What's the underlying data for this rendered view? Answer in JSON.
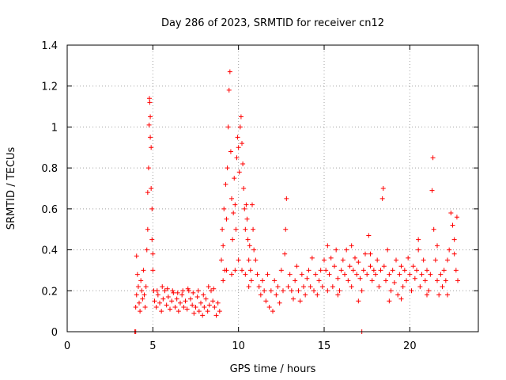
{
  "chart_data": {
    "type": "scatter",
    "title": "Day 286 of 2023, SRMTID for receiver cn12",
    "xlabel": "GPS time / hours",
    "ylabel": "SRMTID / TECUs",
    "xlim": [
      0,
      24
    ],
    "ylim": [
      0,
      1.4
    ],
    "xticks": [
      0,
      5,
      10,
      15,
      20
    ],
    "xtick_labels": [
      "0",
      "5",
      "10",
      "15",
      "20"
    ],
    "yticks": [
      0,
      0.2,
      0.4,
      0.6,
      0.8,
      1.0,
      1.2,
      1.4
    ],
    "ytick_labels": [
      "0",
      "0.2",
      "0.4",
      "0.6",
      "0.8",
      "1",
      "1.2",
      "1.4"
    ],
    "grid": true,
    "marker": "+",
    "color": "#ff0000",
    "series": [
      {
        "name": "cn12",
        "points": [
          [
            3.95,
            0.0
          ],
          [
            4.0,
            0.0
          ],
          [
            17.2,
            0.0
          ],
          [
            4.0,
            0.12
          ],
          [
            4.05,
            0.18
          ],
          [
            4.05,
            0.37
          ],
          [
            4.1,
            0.28
          ],
          [
            4.15,
            0.22
          ],
          [
            4.2,
            0.14
          ],
          [
            4.25,
            0.1
          ],
          [
            4.3,
            0.25
          ],
          [
            4.35,
            0.2
          ],
          [
            4.4,
            0.16
          ],
          [
            4.45,
            0.3
          ],
          [
            4.5,
            0.18
          ],
          [
            4.55,
            0.12
          ],
          [
            4.6,
            0.22
          ],
          [
            4.65,
            0.4
          ],
          [
            4.7,
            0.5
          ],
          [
            4.7,
            0.68
          ],
          [
            4.75,
            0.8
          ],
          [
            4.78,
            1.01
          ],
          [
            4.8,
            1.14
          ],
          [
            4.82,
            1.12
          ],
          [
            4.85,
            1.05
          ],
          [
            4.85,
            0.95
          ],
          [
            4.9,
            0.9
          ],
          [
            4.9,
            0.7
          ],
          [
            4.95,
            0.6
          ],
          [
            4.95,
            0.45
          ],
          [
            5.0,
            0.38
          ],
          [
            5.0,
            0.3
          ],
          [
            5.05,
            0.2
          ],
          [
            5.1,
            0.15
          ],
          [
            5.2,
            0.12
          ],
          [
            5.3,
            0.18
          ],
          [
            5.4,
            0.14
          ],
          [
            5.5,
            0.1
          ],
          [
            5.6,
            0.16
          ],
          [
            5.7,
            0.2
          ],
          [
            5.8,
            0.13
          ],
          [
            5.9,
            0.17
          ],
          [
            6.0,
            0.11
          ],
          [
            6.1,
            0.15
          ],
          [
            6.2,
            0.19
          ],
          [
            6.3,
            0.12
          ],
          [
            6.4,
            0.16
          ],
          [
            6.5,
            0.1
          ],
          [
            6.6,
            0.14
          ],
          [
            6.7,
            0.18
          ],
          [
            6.8,
            0.12
          ],
          [
            6.9,
            0.15
          ],
          [
            7.0,
            0.11
          ],
          [
            7.1,
            0.2
          ],
          [
            7.2,
            0.16
          ],
          [
            7.3,
            0.13
          ],
          [
            7.4,
            0.09
          ],
          [
            7.5,
            0.12
          ],
          [
            7.6,
            0.17
          ],
          [
            7.7,
            0.1
          ],
          [
            7.8,
            0.14
          ],
          [
            7.9,
            0.08
          ],
          [
            8.0,
            0.12
          ],
          [
            8.1,
            0.16
          ],
          [
            8.2,
            0.1
          ],
          [
            8.3,
            0.13
          ],
          [
            8.4,
            0.2
          ],
          [
            8.5,
            0.15
          ],
          [
            8.6,
            0.12
          ],
          [
            8.7,
            0.08
          ],
          [
            8.8,
            0.14
          ],
          [
            8.9,
            0.1
          ],
          [
            5.25,
            0.2
          ],
          [
            5.55,
            0.22
          ],
          [
            5.85,
            0.21
          ],
          [
            6.15,
            0.2
          ],
          [
            6.45,
            0.19
          ],
          [
            6.75,
            0.2
          ],
          [
            7.05,
            0.21
          ],
          [
            7.35,
            0.19
          ],
          [
            7.65,
            0.2
          ],
          [
            7.95,
            0.18
          ],
          [
            8.25,
            0.22
          ],
          [
            8.55,
            0.21
          ],
          [
            9.0,
            0.35
          ],
          [
            9.05,
            0.5
          ],
          [
            9.1,
            0.42
          ],
          [
            9.15,
            0.6
          ],
          [
            9.2,
            0.3
          ],
          [
            9.25,
            0.72
          ],
          [
            9.3,
            0.55
          ],
          [
            9.35,
            0.8
          ],
          [
            9.4,
            1.0
          ],
          [
            9.45,
            1.18
          ],
          [
            9.5,
            1.27
          ],
          [
            9.55,
            0.88
          ],
          [
            9.6,
            0.65
          ],
          [
            9.65,
            0.45
          ],
          [
            9.7,
            0.58
          ],
          [
            9.75,
            0.75
          ],
          [
            9.8,
            0.62
          ],
          [
            9.85,
            0.5
          ],
          [
            9.9,
            0.85
          ],
          [
            9.95,
            0.95
          ],
          [
            10.0,
            0.9
          ],
          [
            10.05,
            0.78
          ],
          [
            10.1,
            1.0
          ],
          [
            10.15,
            1.05
          ],
          [
            10.2,
            0.92
          ],
          [
            10.25,
            0.82
          ],
          [
            10.3,
            0.7
          ],
          [
            10.35,
            0.6
          ],
          [
            10.4,
            0.5
          ],
          [
            10.45,
            0.62
          ],
          [
            10.5,
            0.55
          ],
          [
            10.55,
            0.45
          ],
          [
            10.6,
            0.35
          ],
          [
            10.65,
            0.42
          ],
          [
            10.7,
            0.3
          ],
          [
            10.75,
            0.25
          ],
          [
            10.8,
            0.62
          ],
          [
            10.85,
            0.5
          ],
          [
            9.1,
            0.25
          ],
          [
            9.3,
            0.3
          ],
          [
            9.6,
            0.28
          ],
          [
            9.8,
            0.3
          ],
          [
            10.0,
            0.35
          ],
          [
            10.2,
            0.3
          ],
          [
            10.4,
            0.28
          ],
          [
            10.6,
            0.22
          ],
          [
            10.9,
            0.4
          ],
          [
            11.0,
            0.35
          ],
          [
            11.1,
            0.28
          ],
          [
            11.2,
            0.22
          ],
          [
            11.3,
            0.18
          ],
          [
            11.4,
            0.25
          ],
          [
            11.5,
            0.2
          ],
          [
            11.6,
            0.15
          ],
          [
            11.7,
            0.28
          ],
          [
            11.8,
            0.12
          ],
          [
            11.9,
            0.2
          ],
          [
            12.0,
            0.1
          ],
          [
            12.1,
            0.25
          ],
          [
            12.2,
            0.18
          ],
          [
            12.3,
            0.22
          ],
          [
            12.4,
            0.14
          ],
          [
            12.5,
            0.3
          ],
          [
            12.6,
            0.2
          ],
          [
            12.7,
            0.38
          ],
          [
            12.75,
            0.5
          ],
          [
            12.8,
            0.65
          ],
          [
            12.9,
            0.22
          ],
          [
            13.0,
            0.28
          ],
          [
            13.1,
            0.2
          ],
          [
            13.2,
            0.16
          ],
          [
            13.3,
            0.25
          ],
          [
            13.4,
            0.32
          ],
          [
            13.5,
            0.2
          ],
          [
            13.6,
            0.15
          ],
          [
            13.7,
            0.28
          ],
          [
            13.8,
            0.22
          ],
          [
            13.9,
            0.18
          ],
          [
            14.0,
            0.26
          ],
          [
            14.1,
            0.3
          ],
          [
            14.2,
            0.22
          ],
          [
            14.3,
            0.36
          ],
          [
            14.4,
            0.2
          ],
          [
            14.5,
            0.28
          ],
          [
            14.6,
            0.18
          ],
          [
            14.7,
            0.25
          ],
          [
            14.8,
            0.3
          ],
          [
            14.9,
            0.22
          ],
          [
            15.0,
            0.35
          ],
          [
            15.1,
            0.3
          ],
          [
            15.2,
            0.42
          ],
          [
            15.3,
            0.28
          ],
          [
            15.4,
            0.36
          ],
          [
            15.5,
            0.22
          ],
          [
            15.6,
            0.32
          ],
          [
            15.7,
            0.4
          ],
          [
            15.8,
            0.26
          ],
          [
            15.9,
            0.2
          ],
          [
            16.0,
            0.3
          ],
          [
            16.1,
            0.35
          ],
          [
            16.2,
            0.28
          ],
          [
            16.3,
            0.4
          ],
          [
            16.4,
            0.25
          ],
          [
            16.5,
            0.32
          ],
          [
            16.6,
            0.22
          ],
          [
            16.7,
            0.3
          ],
          [
            16.8,
            0.36
          ],
          [
            16.9,
            0.28
          ],
          [
            17.0,
            0.34
          ],
          [
            17.1,
            0.26
          ],
          [
            17.2,
            0.2
          ],
          [
            17.3,
            0.3
          ],
          [
            17.4,
            0.38
          ],
          [
            17.5,
            0.28
          ],
          [
            17.6,
            0.47
          ],
          [
            17.7,
            0.32
          ],
          [
            17.8,
            0.25
          ],
          [
            17.9,
            0.3
          ],
          [
            18.0,
            0.28
          ],
          [
            18.1,
            0.35
          ],
          [
            18.2,
            0.22
          ],
          [
            18.3,
            0.3
          ],
          [
            18.4,
            0.65
          ],
          [
            18.45,
            0.7
          ],
          [
            18.5,
            0.32
          ],
          [
            18.6,
            0.25
          ],
          [
            18.7,
            0.4
          ],
          [
            18.8,
            0.28
          ],
          [
            18.9,
            0.2
          ],
          [
            19.0,
            0.3
          ],
          [
            19.1,
            0.24
          ],
          [
            19.2,
            0.35
          ],
          [
            19.3,
            0.18
          ],
          [
            19.4,
            0.28
          ],
          [
            19.5,
            0.32
          ],
          [
            19.6,
            0.22
          ],
          [
            19.7,
            0.3
          ],
          [
            19.8,
            0.25
          ],
          [
            19.9,
            0.36
          ],
          [
            20.0,
            0.28
          ],
          [
            20.1,
            0.2
          ],
          [
            20.2,
            0.32
          ],
          [
            20.3,
            0.26
          ],
          [
            20.4,
            0.3
          ],
          [
            20.5,
            0.4
          ],
          [
            20.6,
            0.22
          ],
          [
            20.7,
            0.28
          ],
          [
            20.8,
            0.35
          ],
          [
            20.9,
            0.25
          ],
          [
            21.0,
            0.3
          ],
          [
            21.1,
            0.2
          ],
          [
            21.2,
            0.28
          ],
          [
            21.3,
            0.69
          ],
          [
            21.35,
            0.85
          ],
          [
            21.4,
            0.5
          ],
          [
            21.5,
            0.35
          ],
          [
            21.6,
            0.25
          ],
          [
            21.7,
            0.18
          ],
          [
            21.8,
            0.28
          ],
          [
            21.9,
            0.22
          ],
          [
            22.0,
            0.3
          ],
          [
            22.1,
            0.25
          ],
          [
            22.2,
            0.35
          ],
          [
            22.3,
            0.4
          ],
          [
            22.4,
            0.58
          ],
          [
            22.5,
            0.52
          ],
          [
            22.6,
            0.45
          ],
          [
            22.7,
            0.3
          ],
          [
            22.75,
            0.56
          ],
          [
            22.8,
            0.25
          ],
          [
            15.2,
            0.2
          ],
          [
            15.8,
            0.18
          ],
          [
            16.6,
            0.42
          ],
          [
            17.0,
            0.15
          ],
          [
            17.7,
            0.38
          ],
          [
            18.8,
            0.15
          ],
          [
            19.5,
            0.16
          ],
          [
            20.5,
            0.45
          ],
          [
            21.0,
            0.18
          ],
          [
            21.6,
            0.42
          ],
          [
            22.2,
            0.18
          ],
          [
            22.6,
            0.38
          ]
        ]
      }
    ]
  }
}
